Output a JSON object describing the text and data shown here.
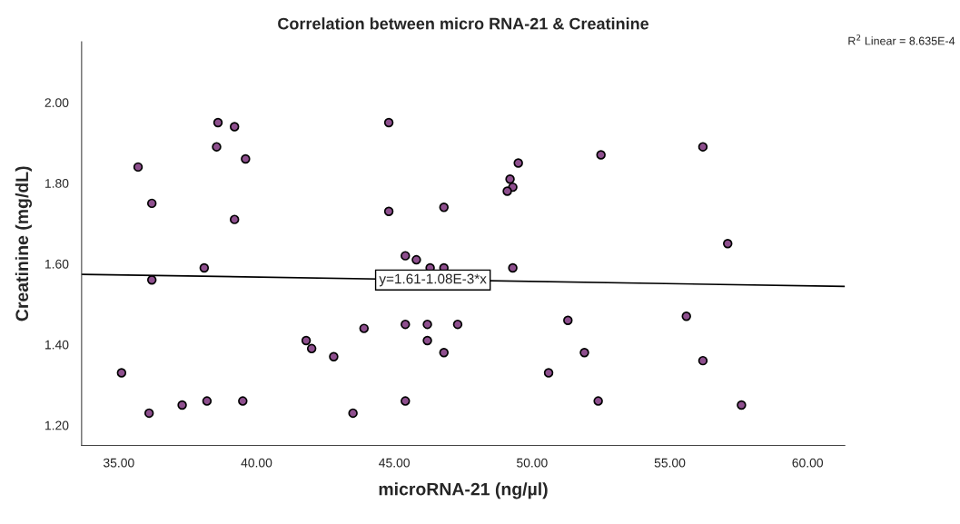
{
  "chart_data": {
    "type": "scatter",
    "title": "Correlation between micro RNA-21 & Creatinine",
    "xlabel": "microRNA-21 (ng/µl)",
    "ylabel": "Creatinine (mg/dL)",
    "xlim": [
      33.65,
      61.35
    ],
    "ylim": [
      1.15,
      2.15
    ],
    "xticks": [
      {
        "value": 35,
        "label": "35.00"
      },
      {
        "value": 40,
        "label": "40.00"
      },
      {
        "value": 45,
        "label": "45.00"
      },
      {
        "value": 50,
        "label": "50.00"
      },
      {
        "value": 55,
        "label": "55.00"
      },
      {
        "value": 60,
        "label": "60.00"
      }
    ],
    "yticks": [
      {
        "value": 1.2,
        "label": "1.20"
      },
      {
        "value": 1.4,
        "label": "1.40"
      },
      {
        "value": 1.6,
        "label": "1.60"
      },
      {
        "value": 1.8,
        "label": "1.80"
      },
      {
        "value": 2.0,
        "label": "2.00"
      }
    ],
    "grid": false,
    "series": [
      {
        "marker": "circle",
        "color": "#8e4f8e",
        "x": [
          35.7,
          38.55,
          39.6,
          36.2,
          39.2,
          38.1,
          36.2,
          41.8,
          42.0,
          42.8,
          35.1,
          38.2,
          39.5,
          37.3,
          36.1,
          49.5,
          49.2,
          49.3,
          49.1,
          44.8,
          46.8,
          45.4,
          45.8,
          46.3,
          46.8,
          49.3,
          51.3,
          43.9,
          45.4,
          46.2,
          47.3,
          46.2,
          46.8,
          50.6,
          45.4,
          43.5,
          52.5,
          56.2,
          57.1,
          55.6,
          51.9,
          56.2,
          52.4,
          57.6,
          38.6,
          39.2,
          44.8
        ],
        "values": [
          1.84,
          1.89,
          1.86,
          1.75,
          1.71,
          1.59,
          1.56,
          1.41,
          1.39,
          1.37,
          1.33,
          1.26,
          1.26,
          1.25,
          1.23,
          1.85,
          1.81,
          1.79,
          1.78,
          1.73,
          1.74,
          1.62,
          1.61,
          1.59,
          1.59,
          1.59,
          1.46,
          1.44,
          1.45,
          1.45,
          1.45,
          1.41,
          1.38,
          1.33,
          1.26,
          1.23,
          1.87,
          1.89,
          1.65,
          1.47,
          1.38,
          1.36,
          1.26,
          1.25,
          1.95,
          1.94,
          1.95
        ]
      },
      {
        "type": "line",
        "color": "#000000",
        "x": [
          33.65,
          61.35
        ],
        "values": [
          1.574,
          1.544
        ]
      }
    ],
    "annotations": [
      {
        "text": "y=1.61-1.08E-3*x",
        "x": 46.4,
        "y": 1.56
      },
      "R$^{2}$ Linear = 8.635E-4"
    ]
  }
}
